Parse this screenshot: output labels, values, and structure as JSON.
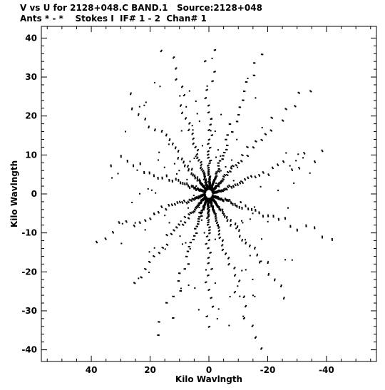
{
  "header": {
    "line1": "V vs U for 2128+048.C BAND.1   Source:2128+048",
    "line2": "Ants * - *    Stokes I  IF# 1 - 2  Chan# 1"
  },
  "chart_data": {
    "type": "scatter",
    "xlabel": "Kilo Wavlngth",
    "ylabel": "Kilo Wavlngth",
    "xlim": [
      57,
      -57
    ],
    "ylim": [
      -43,
      43
    ],
    "x_reversed": true,
    "grid": false,
    "legend": "none",
    "x_ticks": [
      40,
      20,
      0,
      -20,
      -40
    ],
    "y_ticks": [
      40,
      30,
      20,
      10,
      0,
      -10,
      -20,
      -30,
      -40
    ],
    "arm_angles_deg": [
      15,
      43,
      68,
      90,
      114,
      140,
      165,
      195,
      223,
      248,
      270,
      294,
      320,
      345
    ],
    "baseline_max_radius": 45,
    "point_color": "#000000",
    "note_points": "uv coverage tracks of a snapshot VLA-like array; mirrored pairs (u,v) and (-u,-v)"
  }
}
